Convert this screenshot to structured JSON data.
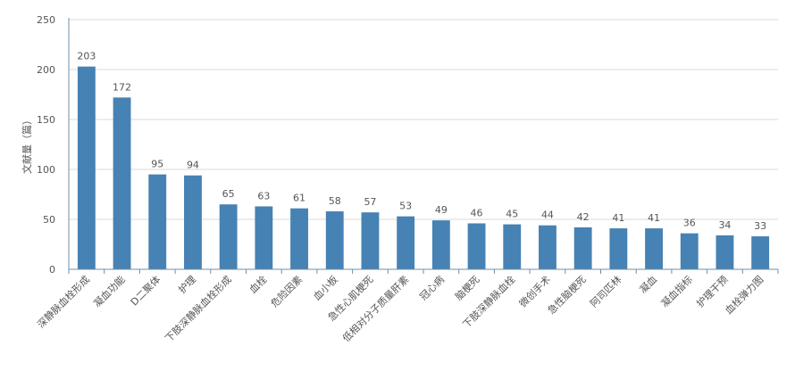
{
  "chart_data": {
    "type": "bar",
    "ylabel": "文献量（篇）",
    "ylim": [
      0,
      250
    ],
    "yticks": [
      0,
      50,
      100,
      150,
      200,
      250
    ],
    "grid": true,
    "categories": [
      "深静脉血栓形成",
      "凝血功能",
      "D二聚体",
      "护理",
      "下肢深静脉血栓形成",
      "血栓",
      "危险因素",
      "血小板",
      "急性心肌梗死",
      "低相对分子质量肝素",
      "冠心病",
      "脑梗死",
      "下肢深静脉血栓",
      "微创手术",
      "急性脑梗死",
      "阿司匹林",
      "凝血",
      "凝血指标",
      "护理干预",
      "血栓弹力图"
    ],
    "values": [
      203,
      172,
      95,
      94,
      65,
      63,
      61,
      58,
      57,
      53,
      49,
      46,
      45,
      44,
      42,
      41,
      41,
      36,
      34,
      33
    ],
    "colors": {
      "bar": "#4682b4",
      "grid": "#d9d9d9",
      "axis": "#6f8fa8",
      "text": "#555555"
    }
  }
}
